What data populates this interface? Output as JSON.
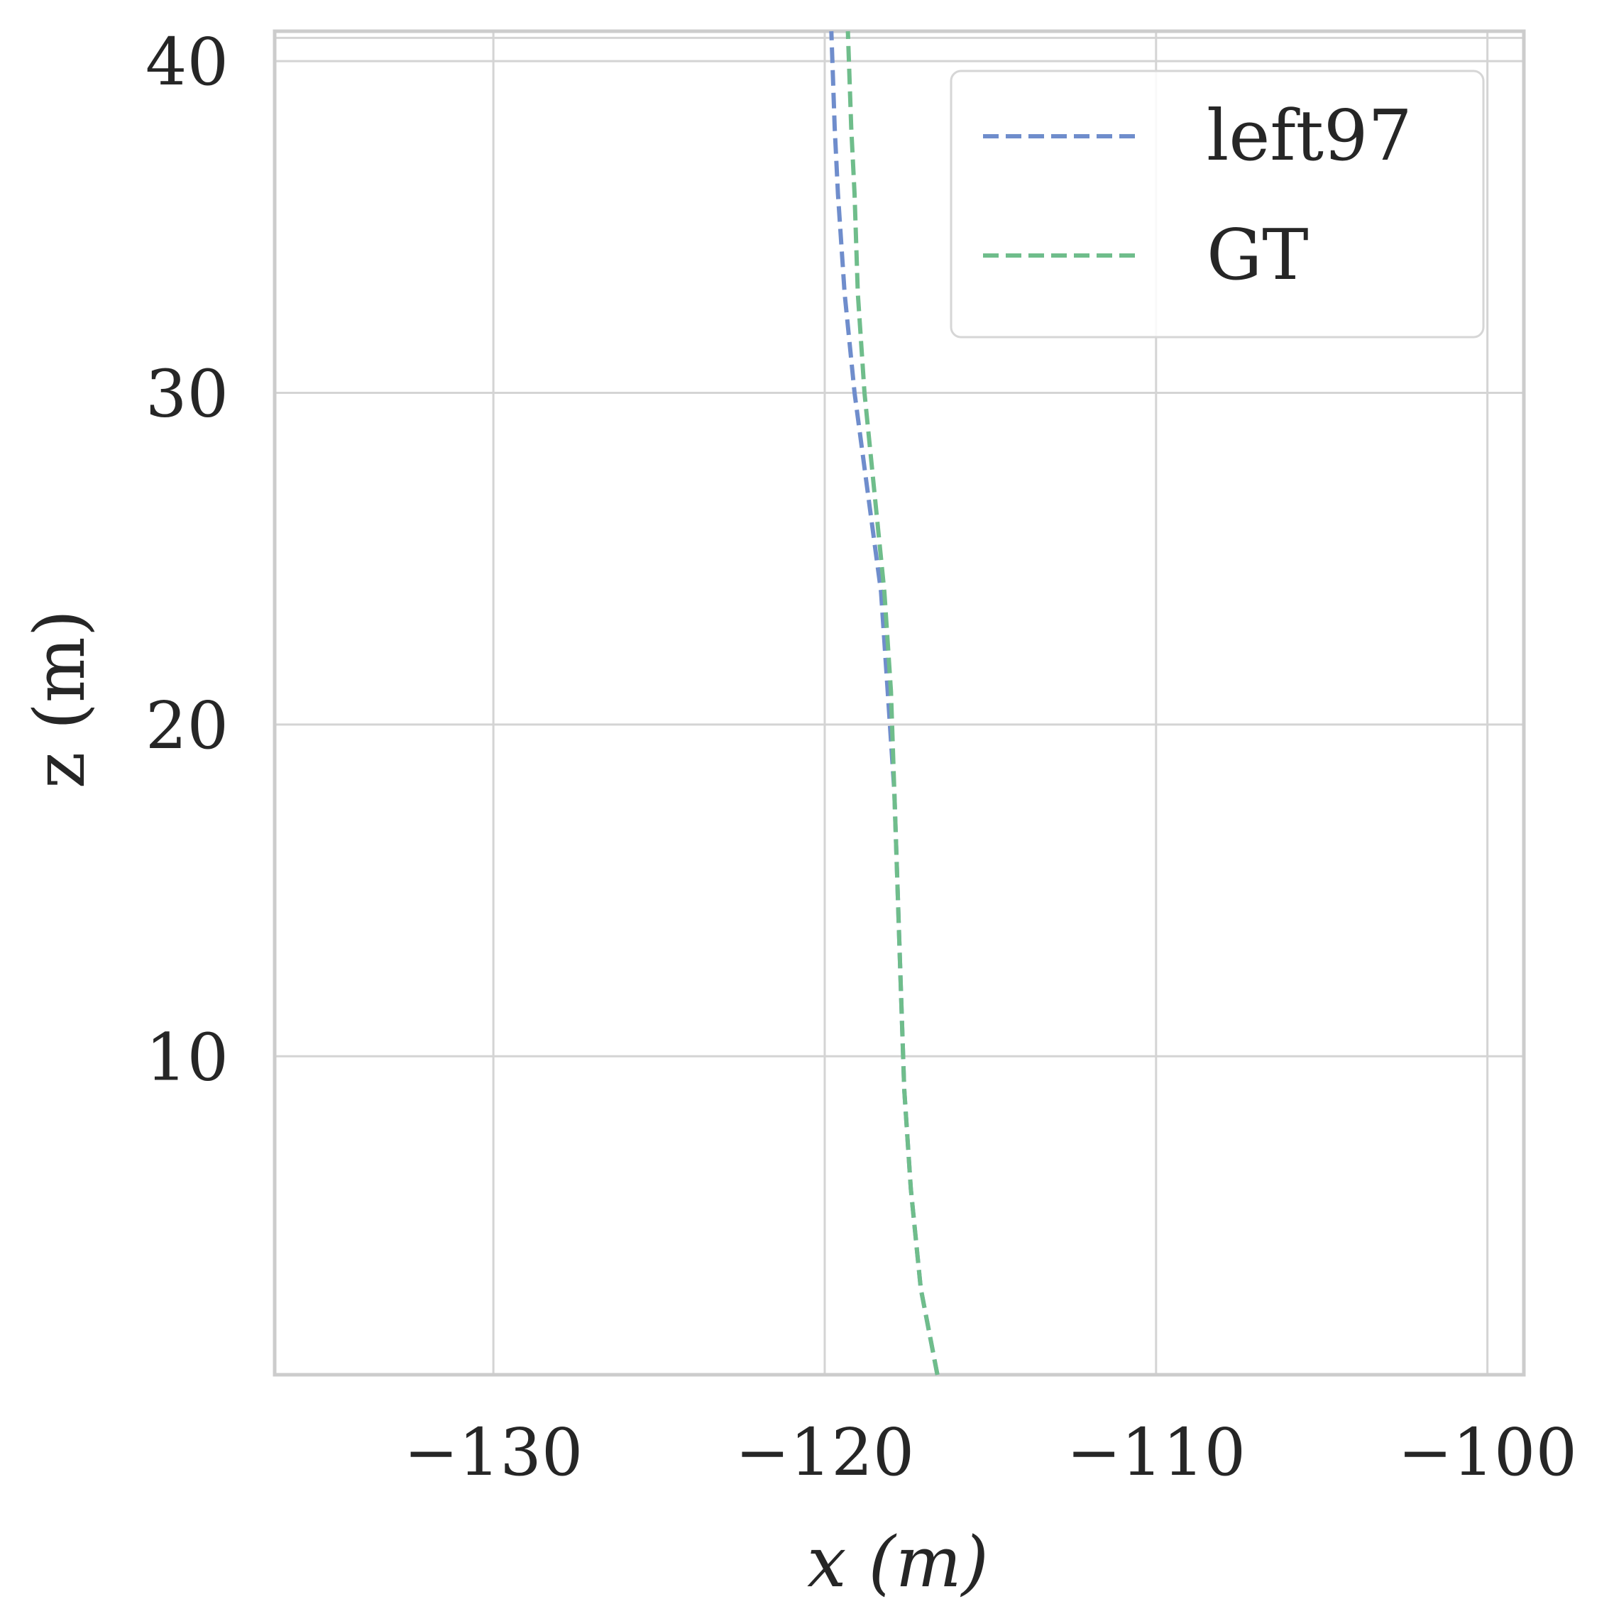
{
  "chart_data": {
    "type": "line",
    "xlabel": "x (m)",
    "ylabel": "z (m)",
    "xlim": [
      -136.6,
      -98.9
    ],
    "ylim": [
      0.4,
      40.9
    ],
    "xticks": [
      -130,
      -120,
      -110,
      -100
    ],
    "xtick_labels": [
      "−130",
      "−120",
      "−110",
      "−100"
    ],
    "yticks": [
      10,
      20,
      30,
      40
    ],
    "ytick_labels": [
      "10",
      "20",
      "30",
      "40"
    ],
    "extra_hgrid": [
      40.7
    ],
    "grid": true,
    "legend_position": "top-right",
    "series": [
      {
        "name": "left97",
        "color": "#6f8dcc",
        "dash": "dashed",
        "points": [
          [
            -116.6,
            0.4
          ],
          [
            -117.1,
            3.0
          ],
          [
            -117.4,
            6.0
          ],
          [
            -117.6,
            9.0
          ],
          [
            -117.7,
            12.0
          ],
          [
            -117.8,
            15.0
          ],
          [
            -117.9,
            18.0
          ],
          [
            -118.1,
            21.0
          ],
          [
            -118.3,
            24.0
          ],
          [
            -118.7,
            27.0
          ],
          [
            -119.1,
            30.0
          ],
          [
            -119.4,
            33.0
          ],
          [
            -119.6,
            36.0
          ],
          [
            -119.7,
            38.0
          ],
          [
            -119.8,
            40.9
          ]
        ]
      },
      {
        "name": "GT",
        "color": "#6fbd8b",
        "dash": "dashed",
        "points": [
          [
            -116.6,
            0.4
          ],
          [
            -117.1,
            3.0
          ],
          [
            -117.4,
            6.0
          ],
          [
            -117.6,
            9.0
          ],
          [
            -117.7,
            12.0
          ],
          [
            -117.8,
            15.0
          ],
          [
            -117.9,
            18.0
          ],
          [
            -118.0,
            21.0
          ],
          [
            -118.2,
            24.0
          ],
          [
            -118.5,
            27.0
          ],
          [
            -118.8,
            30.0
          ],
          [
            -119.0,
            33.0
          ],
          [
            -119.1,
            36.0
          ],
          [
            -119.2,
            38.0
          ],
          [
            -119.3,
            40.9
          ]
        ]
      }
    ]
  }
}
